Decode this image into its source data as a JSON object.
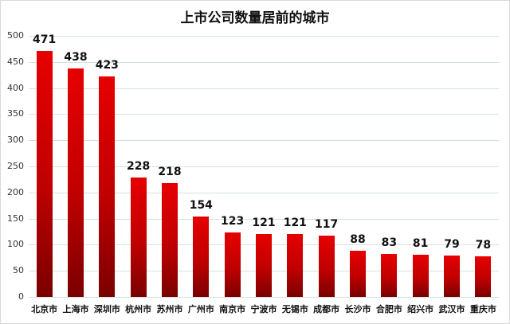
{
  "chart_data": {
    "type": "bar",
    "title": "上市公司数量居前的城市",
    "xlabel": "",
    "ylabel": "",
    "ylim": [
      0,
      500
    ],
    "yticks": [
      0,
      50,
      100,
      150,
      200,
      250,
      300,
      350,
      400,
      450,
      500
    ],
    "grid": true,
    "legend": "none",
    "categories": [
      "北京市",
      "上海市",
      "深圳市",
      "杭州市",
      "苏州市",
      "广州市",
      "南京市",
      "宁波市",
      "无锡市",
      "成都市",
      "长沙市",
      "合肥市",
      "绍兴市",
      "武汉市",
      "重庆市"
    ],
    "values": [
      471,
      438,
      423,
      228,
      218,
      154,
      123,
      121,
      121,
      117,
      88,
      83,
      81,
      79,
      78
    ],
    "data_labels": true,
    "bar_color_top": "#e60000",
    "bar_color_bottom": "#7a0000"
  }
}
